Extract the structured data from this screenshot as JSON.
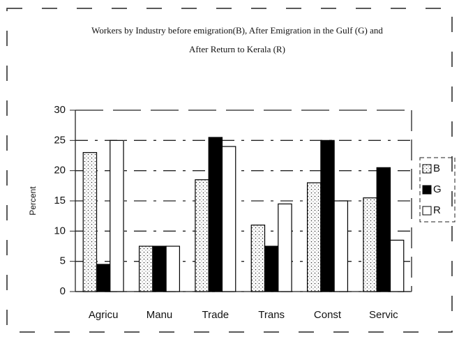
{
  "chart_data": {
    "type": "bar",
    "title": "Workers by Industry before emigration(B), After Emigration in the Gulf (G) and After Return to Kerala (R)",
    "ylabel": "Percent",
    "categories": [
      "Agricu",
      "Manu",
      "Trade",
      "Trans",
      "Const",
      "Servic"
    ],
    "series": [
      {
        "name": "B",
        "color": "#ffffff",
        "pattern": "dots",
        "values": [
          23,
          7.5,
          18.5,
          11,
          18,
          15.5
        ]
      },
      {
        "name": "G",
        "color": "#000000",
        "values": [
          4.5,
          7.5,
          25.5,
          7.5,
          25,
          20.5
        ]
      },
      {
        "name": "R",
        "color": "#ffffff",
        "values": [
          25,
          7.5,
          24,
          14.5,
          15,
          8.5
        ]
      }
    ],
    "ylim": [
      0,
      30
    ],
    "yticks": [
      0,
      5,
      10,
      15,
      20,
      25,
      30
    ],
    "grid": true,
    "legend": "right"
  }
}
